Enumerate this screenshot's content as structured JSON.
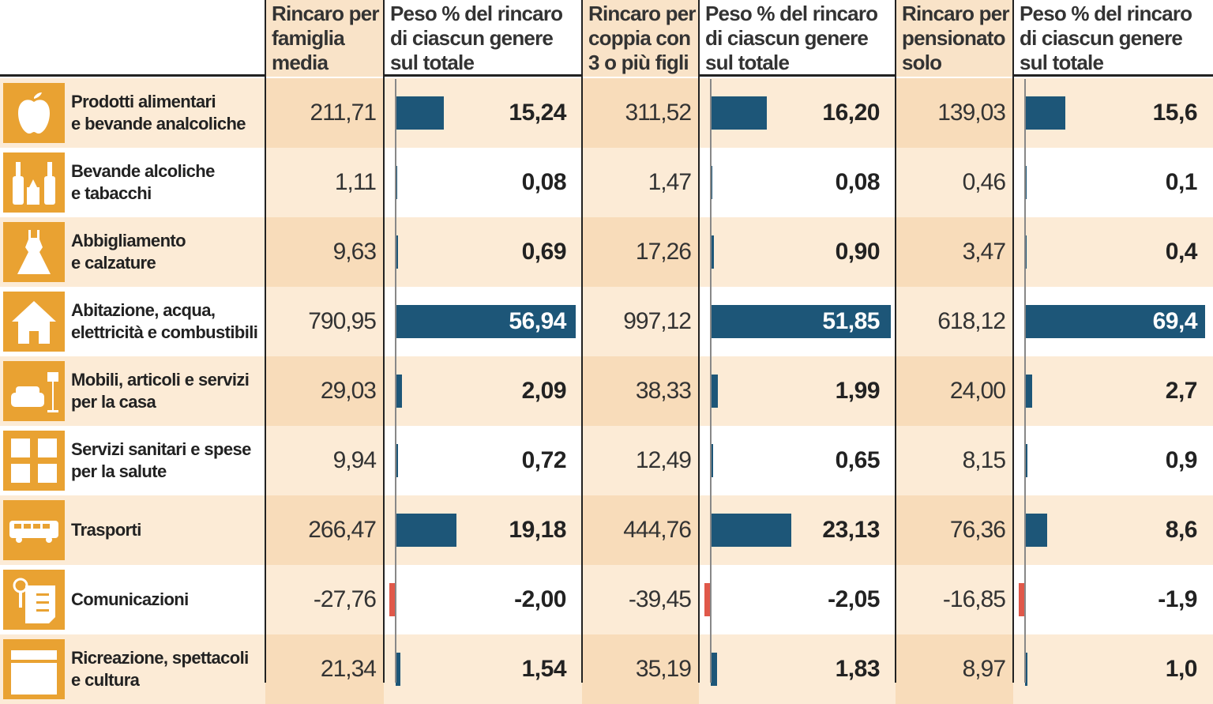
{
  "chart_data": {
    "type": "table",
    "columns": [
      {
        "label": "Rincaro per famiglia media",
        "kind": "value"
      },
      {
        "label": "Peso % del rincaro di ciascun genere sul totale",
        "kind": "bar"
      },
      {
        "label": "Rincaro per coppia con 3 o più figli",
        "kind": "value"
      },
      {
        "label": "Peso % del rincaro di ciascun genere sul totale",
        "kind": "bar"
      },
      {
        "label": "Rincaro per pensionato solo",
        "kind": "value"
      },
      {
        "label": "Peso % del rincaro di ciascun genere sul totale",
        "kind": "bar"
      }
    ],
    "rows": [
      {
        "label": "Prodotti alimentari\ne bevande analcoliche",
        "icon": "apple-icon",
        "values": [
          "211,71",
          "15,24",
          "311,52",
          "16,20",
          "139,03",
          "15,6"
        ]
      },
      {
        "label": "Bevande alcoliche\ne tabacchi",
        "icon": "bottles-icon",
        "values": [
          "1,11",
          "0,08",
          "1,47",
          "0,08",
          "0,46",
          "0,1"
        ]
      },
      {
        "label": "Abbigliamento\ne calzature",
        "icon": "dress-icon",
        "values": [
          "9,63",
          "0,69",
          "17,26",
          "0,90",
          "3,47",
          "0,4"
        ]
      },
      {
        "label": "Abitazione, acqua,\nelettricità e combustibili",
        "icon": "house-icon",
        "values": [
          "790,95",
          "56,94",
          "997,12",
          "51,85",
          "618,12",
          "69,4"
        ]
      },
      {
        "label": "Mobili, articoli e servizi\nper la casa",
        "icon": "sofa-lamp-icon",
        "values": [
          "29,03",
          "2,09",
          "38,33",
          "1,99",
          "24,00",
          "2,7"
        ]
      },
      {
        "label": "Servizi sanitari e spese\nper la salute",
        "icon": "medical-cross-icon",
        "values": [
          "9,94",
          "0,72",
          "12,49",
          "0,65",
          "8,15",
          "0,9"
        ]
      },
      {
        "label": "Trasporti",
        "icon": "bus-icon",
        "values": [
          "266,47",
          "19,18",
          "444,76",
          "23,13",
          "76,36",
          "8,6"
        ]
      },
      {
        "label": "Comunicazioni",
        "icon": "document-icon",
        "values": [
          "-27,76",
          "-2,00",
          "-39,45",
          "-2,05",
          "-16,85",
          "-1,9"
        ]
      },
      {
        "label": "Ricreazione, spettacoli\ne cultura",
        "icon": "clapperboard-icon",
        "values": [
          "21,34",
          "1,54",
          "35,19",
          "1,83",
          "8,97",
          "1,0"
        ]
      }
    ],
    "colors": {
      "bar_positive": "#1d5678",
      "bar_negative": "#e0584a",
      "icon_bg": "#e9a232",
      "row_shade": "#fcebd6",
      "value_col_shade": "#f8dcba"
    }
  }
}
